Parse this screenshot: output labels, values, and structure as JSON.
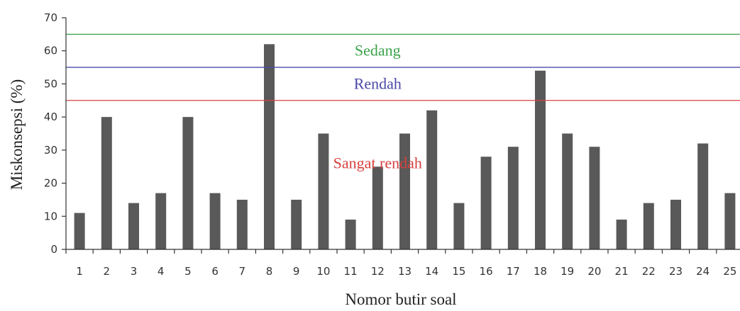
{
  "chart_data": {
    "type": "bar",
    "title": "",
    "xlabel": "Nomor butir  soal",
    "ylabel": "Miskonsepsi  (%)",
    "ylim": [
      0,
      70
    ],
    "yticks": [
      0,
      10,
      20,
      30,
      40,
      50,
      60,
      70
    ],
    "categories": [
      "1",
      "2",
      "3",
      "4",
      "5",
      "6",
      "7",
      "8",
      "9",
      "10",
      "11",
      "12",
      "13",
      "14",
      "15",
      "16",
      "17",
      "18",
      "19",
      "20",
      "21",
      "22",
      "23",
      "24",
      "25"
    ],
    "values": [
      11,
      40,
      14,
      17,
      40,
      17,
      15,
      62,
      15,
      35,
      9,
      25,
      35,
      42,
      14,
      28,
      31,
      54,
      35,
      31,
      9,
      14,
      15,
      32,
      17
    ],
    "bar_color": "#595959",
    "grid": false,
    "reference_lines": [
      {
        "value": 65,
        "color": "#3aa34a"
      },
      {
        "value": 55,
        "color": "#4a4aa8"
      },
      {
        "value": 45,
        "color": "#d84040"
      }
    ],
    "annotations": [
      {
        "text": "Sedang",
        "x_category": "12",
        "y": 60,
        "color": "#3aa34a"
      },
      {
        "text": "Rendah",
        "x_category": "12",
        "y": 50,
        "color": "#4a4aa8"
      },
      {
        "text": "Sangat rendah",
        "x_category": "12",
        "y": 26,
        "color": "#d84040"
      }
    ]
  }
}
